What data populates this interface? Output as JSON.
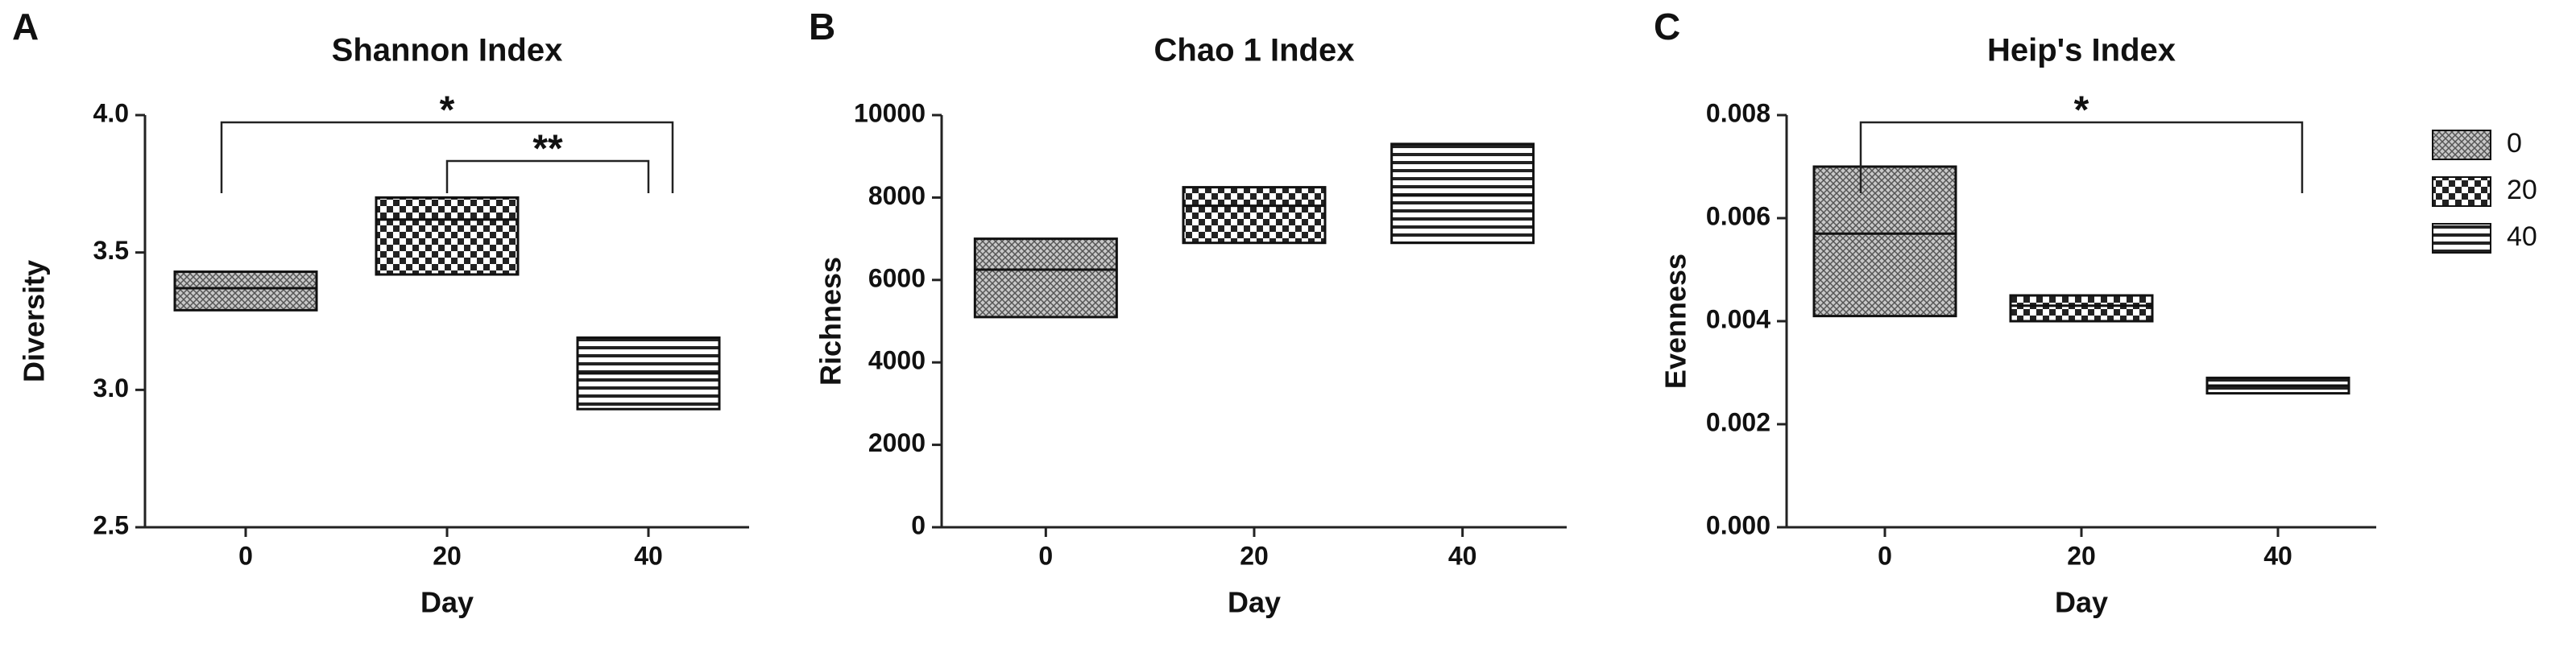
{
  "chart_data": [
    {
      "type": "box",
      "panel_label": "A",
      "title": "Shannon Index",
      "x_label": "Day",
      "y_label": "Diversity",
      "categories": [
        "0",
        "20",
        "40"
      ],
      "low": [
        3.29,
        3.42,
        2.93
      ],
      "high": [
        3.43,
        3.7,
        3.19
      ],
      "median": [
        3.37,
        3.62,
        3.06
      ],
      "ylim": [
        2.5,
        4.0
      ],
      "yticks": [
        2.5,
        {
          "value": 3,
          "label": "3.0"
        },
        3.5,
        {
          "value": 4,
          "label": "4.0"
        }
      ],
      "annotations": [
        {
          "text": "*",
          "from": "0",
          "to": "40"
        },
        {
          "text": "**",
          "from": "20",
          "to": "40"
        }
      ]
    },
    {
      "type": "box",
      "panel_label": "B",
      "title": "Chao 1 Index",
      "x_label": "Day",
      "y_label": "Richness",
      "categories": [
        "0",
        "20",
        "40"
      ],
      "low": [
        5100,
        6900,
        6900
      ],
      "high": [
        7000,
        8250,
        9300
      ],
      "median": [
        6250,
        7800,
        8050
      ],
      "ylim": [
        0,
        10000
      ],
      "yticks": [
        0,
        2000,
        4000,
        6000,
        8000,
        10000
      ]
    },
    {
      "type": "box",
      "panel_label": "C",
      "title": "Heip's Index",
      "x_label": "Day",
      "y_label": "Evenness",
      "categories": [
        "0",
        "20",
        "40"
      ],
      "low": [
        0.0041,
        0.004,
        0.0026
      ],
      "high": [
        0.007,
        0.0045,
        0.0029
      ],
      "median": [
        0.0057,
        0.0043,
        0.00275
      ],
      "ylim": [
        0,
        0.008
      ],
      "yticks": [
        {
          "value": 0,
          "label": "0.000"
        },
        {
          "value": 0.002,
          "label": "0.002"
        },
        {
          "value": 0.004,
          "label": "0.004"
        },
        {
          "value": 0.006,
          "label": "0.006"
        },
        {
          "value": 0.008,
          "label": "0.008"
        }
      ],
      "annotations": [
        {
          "text": "*",
          "from": "0",
          "to": "40"
        }
      ],
      "legend": true
    }
  ]
}
